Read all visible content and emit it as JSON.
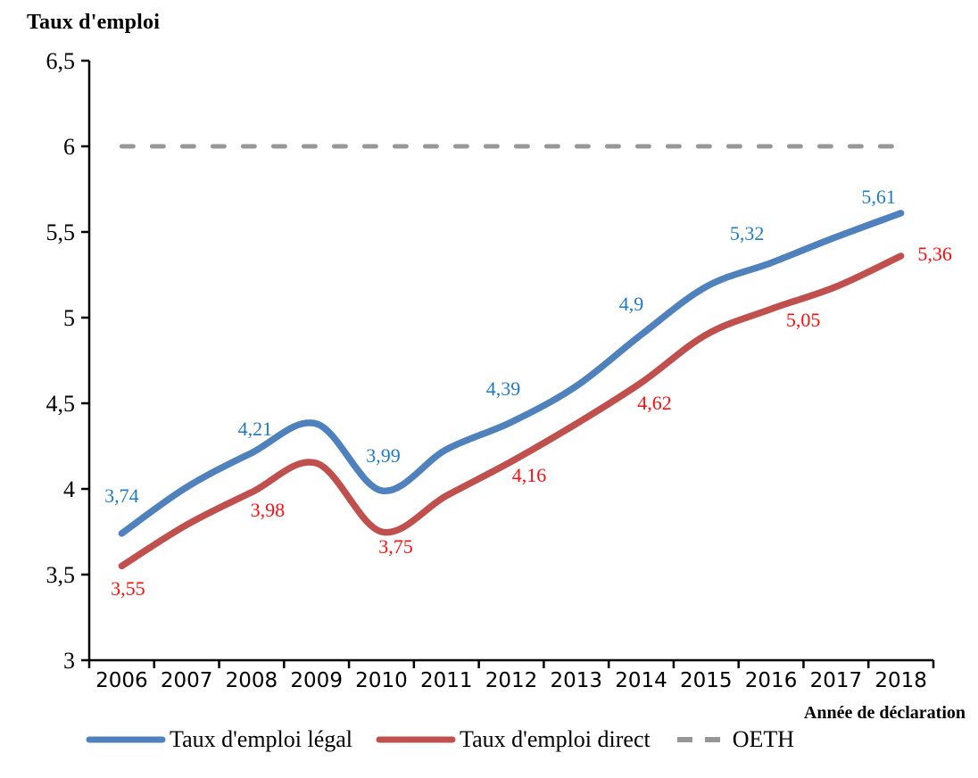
{
  "title": "Taux d'emploi",
  "x_axis_title": "Année de déclaration",
  "chart_data": {
    "type": "line",
    "smoothed": true,
    "categories": [
      "2006",
      "2007",
      "2008",
      "2009",
      "2010",
      "2011",
      "2012",
      "2013",
      "2014",
      "2015",
      "2016",
      "2017",
      "2018"
    ],
    "series": [
      {
        "name": "Taux d'emploi légal",
        "color": "#4F81BD",
        "label_color": "#1E7BC4",
        "values": [
          3.74,
          4.01,
          4.21,
          4.38,
          3.99,
          4.23,
          4.39,
          4.6,
          4.9,
          5.18,
          5.32,
          5.47,
          5.61
        ],
        "labels": [
          "3,74",
          null,
          "4,21",
          null,
          "3,99",
          null,
          "4,39",
          null,
          "4,9",
          null,
          "5,32",
          null,
          "5,61"
        ]
      },
      {
        "name": "Taux d'emploi direct",
        "color": "#C0504D",
        "label_color": "#FF0D0D",
        "values": [
          3.55,
          3.79,
          3.98,
          4.15,
          3.75,
          3.96,
          4.16,
          4.38,
          4.62,
          4.9,
          5.05,
          5.18,
          5.36
        ],
        "labels": [
          "3,55",
          null,
          "3,98",
          null,
          "3,75",
          null,
          "4,16",
          null,
          "4,62",
          null,
          "5,05",
          null,
          "5,36"
        ]
      }
    ],
    "reference_line": {
      "name": "OETH",
      "value": 6,
      "color": "#979797",
      "style": "dashed"
    },
    "ylim": [
      3,
      6.5
    ],
    "y_ticks": [
      "6,5",
      "6",
      "5,5",
      "5",
      "4,5",
      "4",
      "3,5",
      "3"
    ],
    "y_tick_values": [
      6.5,
      6,
      5.5,
      5,
      4.5,
      4,
      3.5,
      3
    ],
    "axis_color": "#000000",
    "grid": false,
    "legend_position": "bottom"
  }
}
